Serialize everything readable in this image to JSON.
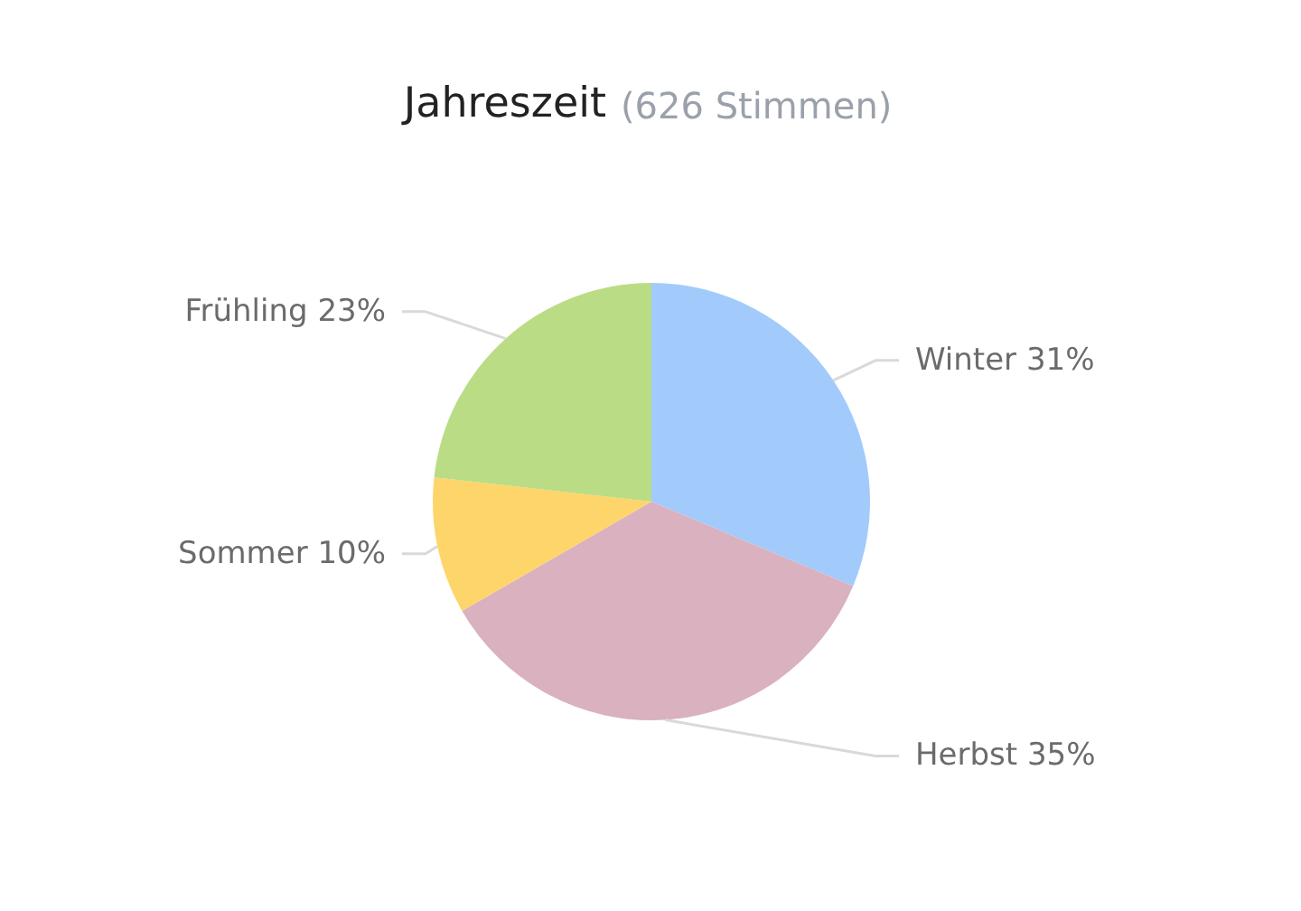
{
  "chart_data": {
    "type": "pie",
    "title": "Jahreszeit",
    "subtitle": "(626 Stimmen)",
    "categories": [
      "Winter",
      "Herbst",
      "Sommer",
      "Frühling"
    ],
    "values": [
      31,
      35,
      10,
      23
    ],
    "colors": [
      "#a2cbfc",
      "#d9b1bf",
      "#fdd56a",
      "#badc85"
    ],
    "value_labels": [
      "31%",
      "35%",
      "10%",
      "23%"
    ]
  }
}
